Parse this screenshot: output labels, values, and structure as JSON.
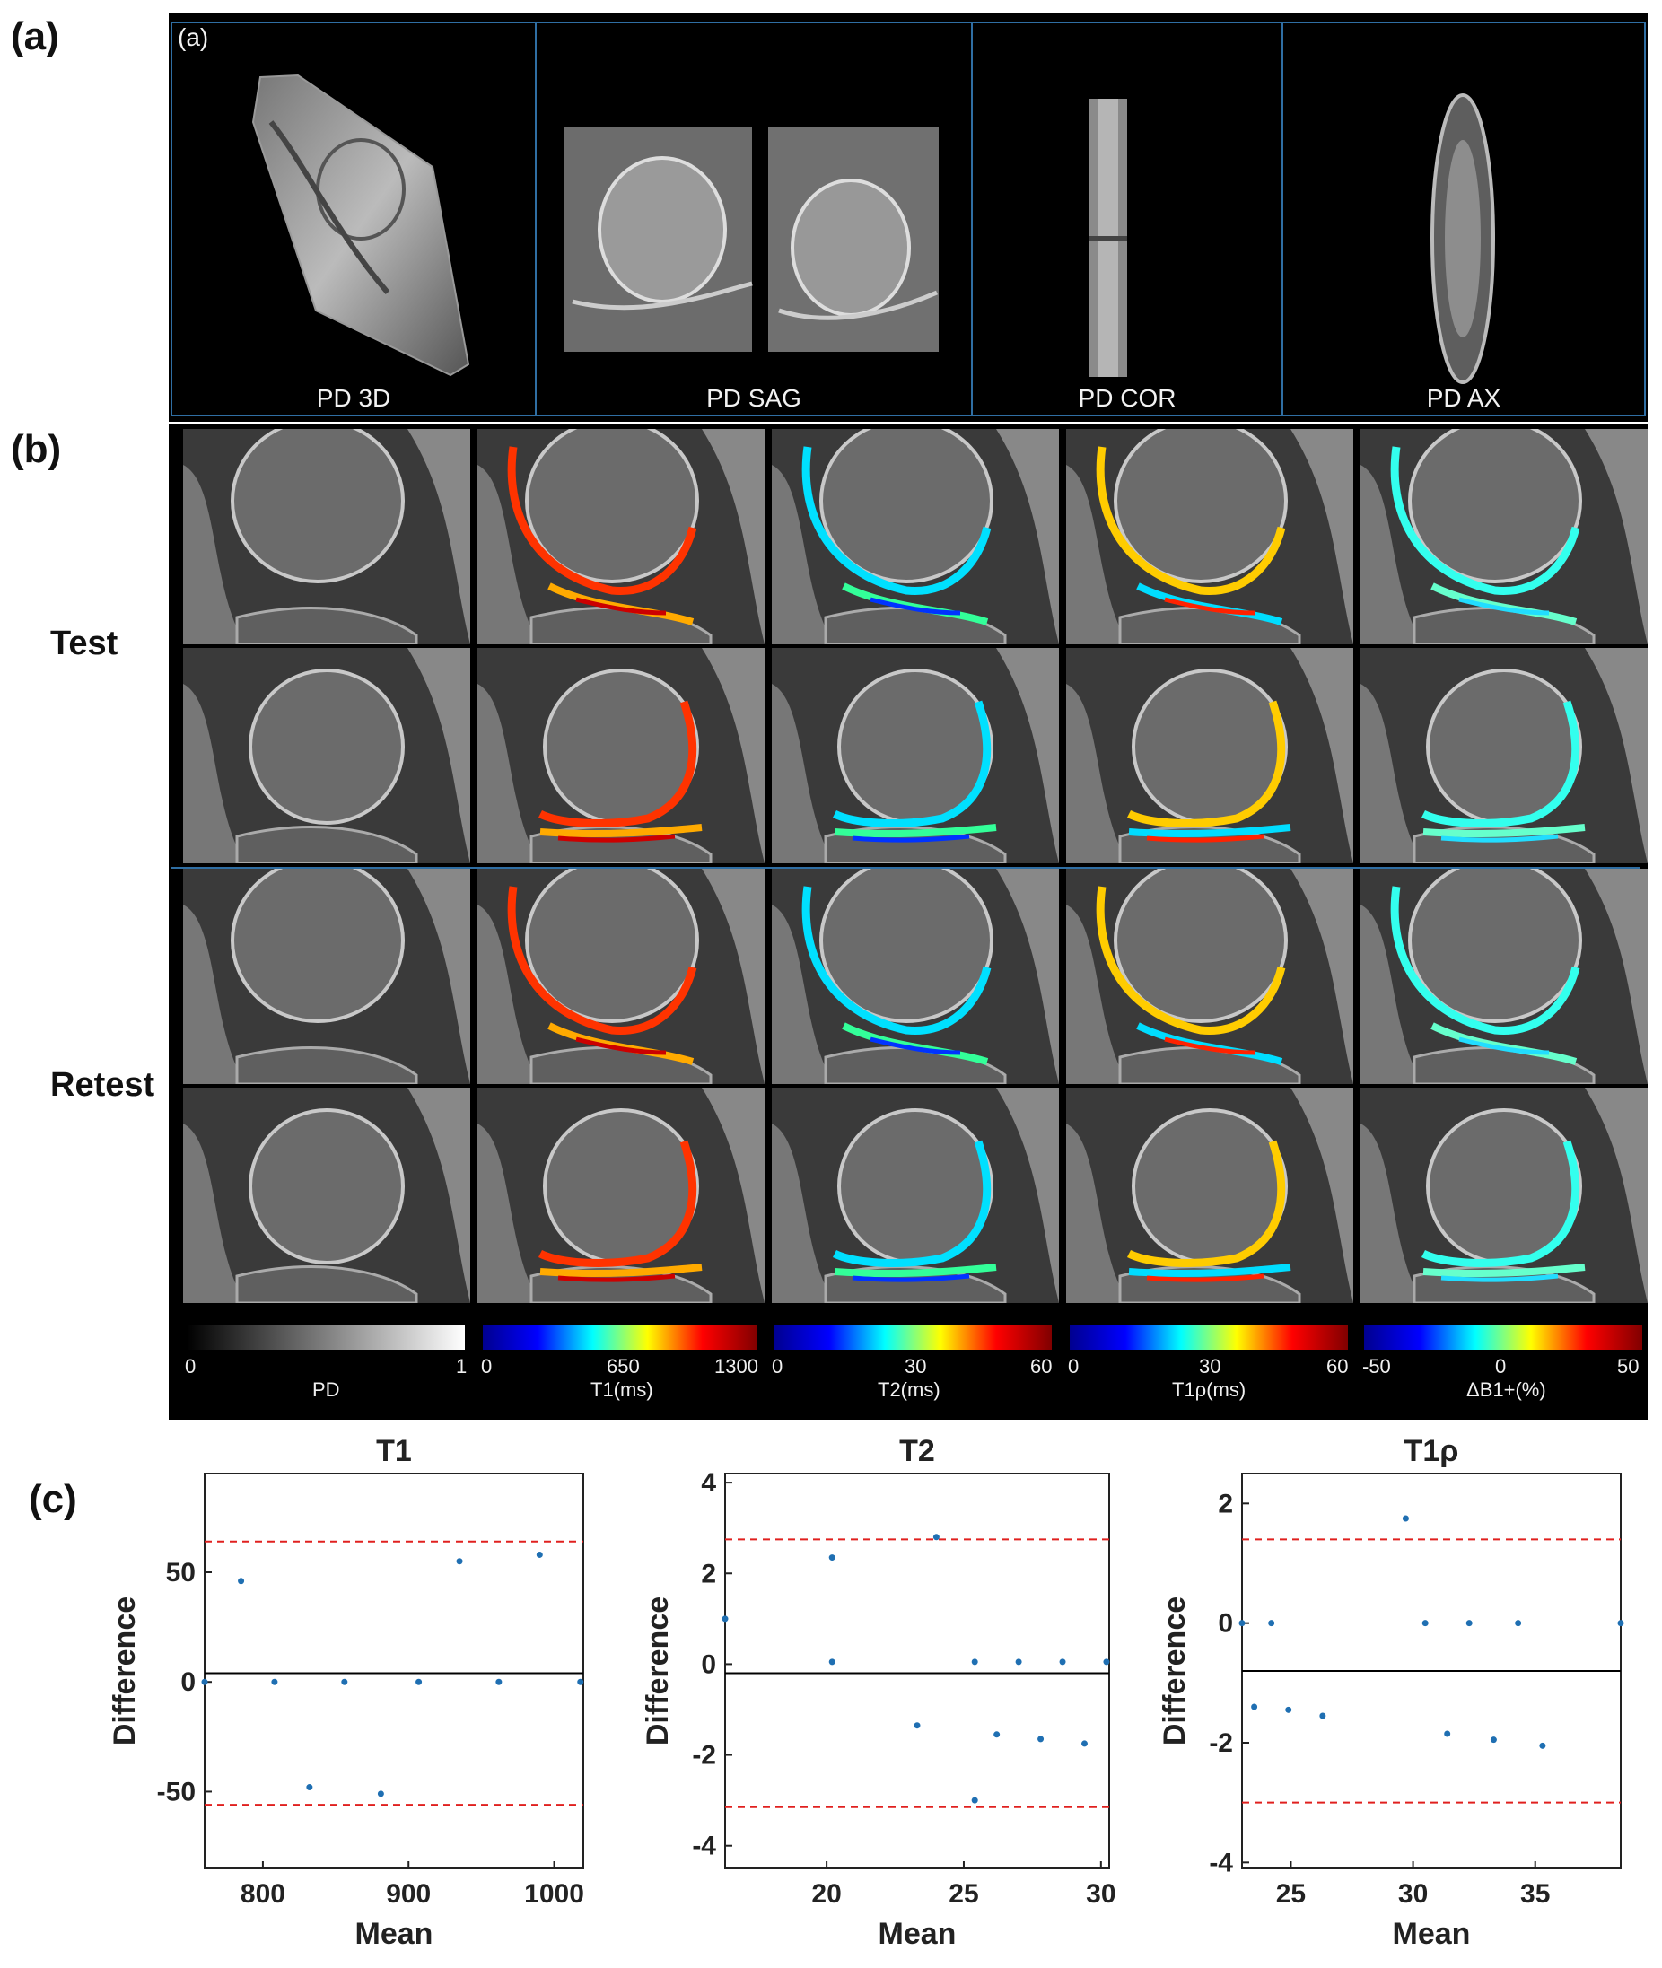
{
  "panel_labels": {
    "a": "(a)",
    "b": "(b)",
    "c": "(c)"
  },
  "panel_a": {
    "inner_tag": "(a)",
    "captions": [
      "PD 3D",
      "PD SAG",
      "PD COR",
      "PD AX"
    ]
  },
  "panel_b": {
    "row_labels": {
      "test": "Test",
      "retest": "Retest"
    },
    "colorbars": [
      {
        "label": "PD",
        "ticks": [
          "0",
          "1"
        ],
        "colormap": "gray"
      },
      {
        "label": "T1(ms)",
        "ticks": [
          "0",
          "650",
          "1300"
        ],
        "colormap": "jet"
      },
      {
        "label": "T2(ms)",
        "ticks": [
          "0",
          "30",
          "60"
        ],
        "colormap": "jet"
      },
      {
        "label": "T1ρ(ms)",
        "ticks": [
          "0",
          "30",
          "60"
        ],
        "colormap": "jet"
      },
      {
        "label": "ΔB1+(%)",
        "ticks": [
          "-50",
          "0",
          "50"
        ],
        "colormap": "jet"
      }
    ],
    "map_columns": [
      "PD",
      "T1",
      "T2",
      "T1rho",
      "dB1"
    ]
  },
  "chart_data": [
    {
      "type": "scatter",
      "title": "T1",
      "xlabel": "Mean",
      "ylabel": "Difference",
      "xlim": [
        760,
        1020
      ],
      "ylim": [
        -85,
        95
      ],
      "xticks": [
        "800",
        "900",
        "1000"
      ],
      "yticks": [
        "-50",
        "0",
        "50"
      ],
      "mean_line": 4,
      "loa_upper": 64,
      "loa_lower": -56,
      "x": [
        760,
        785,
        808,
        832,
        856,
        881,
        907,
        935,
        962,
        990,
        1018
      ],
      "y": [
        0,
        46,
        0,
        -48,
        0,
        -51,
        0,
        55,
        0,
        58,
        0
      ]
    },
    {
      "type": "scatter",
      "title": "T2",
      "xlabel": "Mean",
      "ylabel": "Difference",
      "xlim": [
        16.3,
        30.3
      ],
      "ylim": [
        -4.5,
        4.2
      ],
      "xticks": [
        "20",
        "25",
        "30"
      ],
      "yticks": [
        "-4",
        "-2",
        "0",
        "2",
        "4"
      ],
      "mean_line": -0.2,
      "loa_upper": 2.75,
      "loa_lower": -3.15,
      "x": [
        16.3,
        20.2,
        20.2,
        23.3,
        24.0,
        25.4,
        25.4,
        26.2,
        27.0,
        27.8,
        28.6,
        29.4,
        30.2
      ],
      "y": [
        1.0,
        2.35,
        0.05,
        -1.35,
        2.8,
        0.05,
        -3.0,
        -1.55,
        0.05,
        -1.65,
        0.05,
        -1.75,
        0.05
      ]
    },
    {
      "type": "scatter",
      "title": "T1ρ",
      "xlabel": "Mean",
      "ylabel": "Difference",
      "xlim": [
        23.0,
        38.5
      ],
      "ylim": [
        -4.1,
        2.5
      ],
      "xticks": [
        "25",
        "30",
        "35"
      ],
      "yticks": [
        "-4",
        "-2",
        "0",
        "2"
      ],
      "mean_line": -0.8,
      "loa_upper": 1.4,
      "loa_lower": -3.0,
      "x": [
        23.0,
        23.5,
        24.2,
        24.9,
        26.3,
        29.7,
        30.5,
        31.4,
        32.3,
        33.3,
        34.3,
        35.3,
        38.5
      ],
      "y": [
        0,
        -1.4,
        0,
        -1.45,
        -1.55,
        1.75,
        0,
        -1.85,
        0,
        -1.95,
        0,
        -2.05,
        0
      ]
    }
  ]
}
